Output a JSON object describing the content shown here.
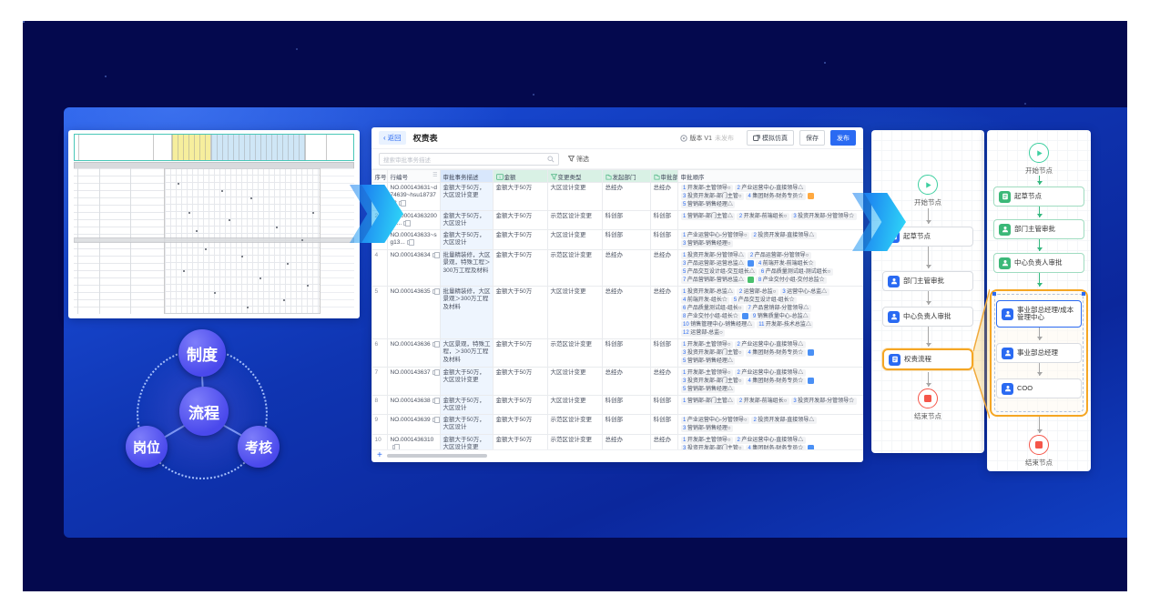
{
  "colors": {
    "primary": "#2a6af2",
    "accent_orange": "#f5a623",
    "cyan": "#30ddf8",
    "green": "#3bb878",
    "red": "#f5564a"
  },
  "diagram": {
    "center": "流程",
    "top": "制度",
    "left": "岗位",
    "right": "考核"
  },
  "icons": {
    "back": "‹",
    "sort": "☰",
    "plus": "+"
  },
  "table": {
    "back_label": "返回",
    "title": "权责表",
    "version_label": "版本 V1",
    "version_status": "未发布",
    "simulate_label": "模拟仿真",
    "save_label": "保存",
    "publish_label": "发布",
    "search_placeholder": "搜索审批事务描述",
    "filter_label": "筛选",
    "add_row_label": "+",
    "columns": [
      "序号",
      "行编号",
      "审批事务描述",
      "金额",
      "变更类型",
      "发起部门",
      "审批部门",
      "审批顺序"
    ],
    "rows": [
      {
        "num": "1",
        "id": "NO.000143631~d74639~hsu1873793",
        "desc": "金额大于50万，大区设计变更",
        "amount": "金额大于50万",
        "type": "大区设计变更",
        "dept1": "总经办",
        "dept2": "总经办",
        "order": [
          "1 开发部-主管领导○",
          "2 产业运营中心-直接领导△",
          "3 投资开发部-部门主管○",
          "4 集团财务-财务专员☆",
          "@orange",
          "5 营销部-销售经理△"
        ]
      },
      {
        "num": "2",
        "id": "NO.0001436320001...",
        "desc": "金额大于50万，大区设计",
        "amount": "金额大于50万",
        "type": "示范区设计变更",
        "dept1": "科创部",
        "dept2": "科创部",
        "order": [
          "1 营销部-部门主管△",
          "2 开发部-前端组长○",
          "3 投资开发部-分管领导☆"
        ]
      },
      {
        "num": "3",
        "id": "NO.000143633~sg13...",
        "desc": "金额大于50万，大区设计",
        "amount": "金额大于50万",
        "type": "大区设计变更",
        "dept1": "科创部",
        "dept2": "科创部",
        "order": [
          "1 产业运营中心-分管领导○",
          "2 投资开发部-直接领导△",
          "3 营销部-销售经理○"
        ]
      },
      {
        "num": "4",
        "id": "NO.000143634",
        "desc": "批量精装修，大区景观，特殊工程＞300万工程及材料",
        "amount": "金额大于50万",
        "type": "示范区设计变更",
        "dept1": "总经办",
        "dept2": "总经办",
        "order": [
          "1 投资开发部-分管领导△",
          "2 产品运营部-分管领导○",
          "3 产品运营部-运营总监△",
          "@blue",
          "4 前端开发-前端组长☆",
          "5 产品交互设计组-交互组长△",
          "6 产品质量测试组-测试组长○",
          "7 产品营销部-营销总监△",
          "@green",
          "8 产业交付小组-交付总监☆"
        ]
      },
      {
        "num": "5",
        "id": "NO.000143635",
        "desc": "批量精装修，大区景观＞300万工程及材料",
        "amount": "金额大于50万",
        "type": "大区设计变更",
        "dept1": "总经办",
        "dept2": "总经办",
        "order": [
          "1 投资开发部-总监△",
          "2 运营部-总监○",
          "3 运营中心-总监△",
          "4 前端开发-组长☆",
          "5 产品交互设计组-组长☆",
          "6 产品质量测试组-组长○",
          "7 产品营销部-分管领导△",
          "8 产业交付小组-组长☆",
          "@blue",
          "9 销售质量中心-总监△",
          "10 销售管理中心-销售经理△",
          "11 开发部-技术总监△",
          "12 运营部-总监○"
        ]
      },
      {
        "num": "6",
        "id": "NO.000143636",
        "desc": "大区景观，特殊工程，＞300万工程及材料",
        "amount": "金额大于50万",
        "type": "示范区设计变更",
        "dept1": "科创部",
        "dept2": "科创部",
        "order": [
          "1 开发部-主管领导○",
          "2 产业运营中心-直接领导△",
          "3 投资开发部-部门主管○",
          "4 集团财务-财务专员☆",
          "@blue",
          "5 营销部-销售经理△"
        ]
      },
      {
        "num": "7",
        "id": "NO.000143637",
        "desc": "金额大于50万，大区设计变更",
        "amount": "金额大于50万",
        "type": "大区设计变更",
        "dept1": "总经办",
        "dept2": "总经办",
        "order": [
          "1 开发部-主管领导○",
          "2 产业运营中心-直接领导△",
          "3 投资开发部-部门主管○",
          "4 集团财务-财务专员☆",
          "@blue",
          "5 营销部-销售经理△"
        ]
      },
      {
        "num": "8",
        "id": "NO.000143638",
        "desc": "金额大于50万，大区设计",
        "amount": "金额大于50万",
        "type": "大区设计变更",
        "dept1": "科创部",
        "dept2": "科创部",
        "order": [
          "1 营销部-部门主管△",
          "2 开发部-前端组长○",
          "3 投资开发部-分管领导☆"
        ]
      },
      {
        "num": "9",
        "id": "NO.000143639",
        "desc": "金额大于50万，大区设计",
        "amount": "金额大于50万",
        "type": "示范区设计变更",
        "dept1": "科创部",
        "dept2": "科创部",
        "order": [
          "1 产业运营中心-分管领导○",
          "2 投资开发部-直接领导△",
          "3 营销部-销售经理○"
        ]
      },
      {
        "num": "10",
        "id": "NO.0001436310",
        "desc": "金额大于50万，大区设计变更",
        "amount": "金额大于50万",
        "type": "示范区设计变更",
        "dept1": "总经办",
        "dept2": "总经办",
        "order": [
          "1 开发部-主管领导○",
          "2 产业运营中心-直接领导△",
          "3 投资开发部-部门主管○",
          "4 集团财务-财务专员☆",
          "@blue",
          "5 营销部-销售经理△"
        ]
      },
      {
        "num": "11",
        "id": "",
        "desc": "",
        "amount": "",
        "type": "",
        "dept1": "",
        "dept2": "",
        "order": []
      },
      {
        "num": "12",
        "id": "",
        "desc": "",
        "amount": "",
        "type": "",
        "dept1": "",
        "dept2": "",
        "order": []
      },
      {
        "num": "13",
        "id": "",
        "desc": "",
        "amount": "",
        "type": "",
        "dept1": "",
        "dept2": "",
        "order": []
      }
    ]
  },
  "flow_a": {
    "nodes": [
      {
        "label": "开始节点"
      },
      {
        "label": "起草节点"
      },
      {
        "label": "部门主管审批"
      },
      {
        "label": "中心负责人审批"
      },
      {
        "label": "权责流程"
      },
      {
        "label": "结束节点"
      }
    ]
  },
  "flow_b": {
    "nodes": [
      {
        "label": "开始节点"
      },
      {
        "label": "起草节点"
      },
      {
        "label": "部门主管审批"
      },
      {
        "label": "中心负责人审批"
      },
      {
        "label": "事业部总经理/成本管理中心"
      },
      {
        "label": "事业部总经理"
      },
      {
        "label": "COO"
      },
      {
        "label": "结束节点"
      }
    ]
  }
}
